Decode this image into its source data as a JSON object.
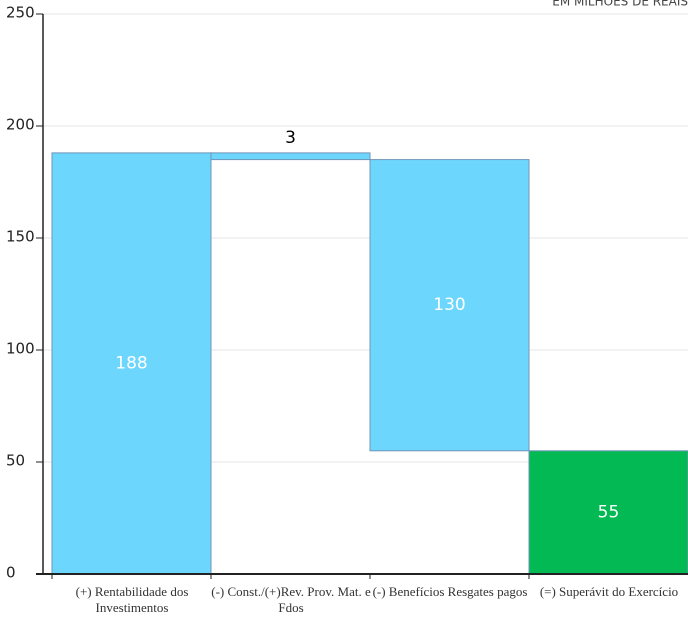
{
  "chart_data": {
    "type": "waterfall",
    "subtitle": "EM MILHÕES DE REAIS",
    "categories": [
      "(+) Rentabilidade dos Investimentos",
      "(-) Const./(+)Rev. Prov. Mat. e Fdos",
      "(-) Benefícios Resgates pagos",
      "(=) Superávit do Exercício"
    ],
    "values": [
      188,
      -3,
      -130,
      55
    ],
    "value_labels": [
      "188",
      "3",
      "130",
      "55"
    ],
    "measure": [
      "absolute",
      "relative",
      "relative",
      "total"
    ],
    "colors": [
      "#6dd6fc",
      "#6dd6fc",
      "#6dd6fc",
      "#03b954"
    ],
    "ylim": [
      0,
      250
    ],
    "yticks": [
      0,
      50,
      100,
      150,
      200,
      250
    ],
    "grid": true
  }
}
